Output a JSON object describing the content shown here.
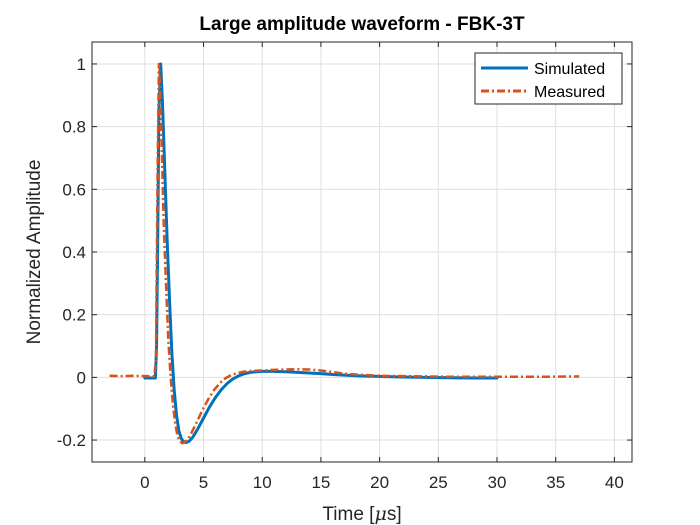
{
  "chart_data": {
    "type": "line",
    "title": "Large amplitude waveform - FBK-3T",
    "xlabel_main": "Time [",
    "xlabel_mu": "μ",
    "xlabel_tail": "s]",
    "ylabel": "Normalized Amplitude",
    "xlim": [
      -4.5,
      41.5
    ],
    "ylim": [
      -0.27,
      1.07
    ],
    "xticks": [
      0,
      5,
      10,
      15,
      20,
      25,
      30,
      35,
      40
    ],
    "yticks": [
      -0.2,
      0,
      0.2,
      0.4,
      0.6,
      0.8,
      1
    ],
    "xtick_labels": [
      "0",
      "5",
      "10",
      "15",
      "20",
      "25",
      "30",
      "35",
      "40"
    ],
    "ytick_labels": [
      "-0.2",
      "0",
      "0.2",
      "0.4",
      "0.6",
      "0.8",
      "1"
    ],
    "grid": true,
    "legend_position": "top-right",
    "series": [
      {
        "name": "Simulated",
        "color": "#0072BD",
        "style": "solid",
        "x": [
          0,
          0.9,
          1.0,
          1.1,
          1.2,
          1.35,
          1.5,
          1.7,
          1.9,
          2.1,
          2.3,
          2.5,
          2.7,
          2.9,
          3.1,
          3.3,
          3.5,
          3.8,
          4.1,
          4.5,
          5.0,
          5.5,
          6.0,
          6.5,
          7.0,
          7.5,
          8.0,
          8.5,
          9.0,
          9.5,
          10.0,
          11.0,
          12.0,
          13.0,
          14.0,
          15.0,
          16.0,
          17.0,
          18.0,
          19.0,
          20.0,
          22.0,
          24.0,
          26.0,
          28.0,
          30.0
        ],
        "y": [
          -0.002,
          -0.002,
          0.1,
          0.45,
          0.85,
          1.0,
          0.88,
          0.66,
          0.44,
          0.25,
          0.08,
          -0.04,
          -0.12,
          -0.17,
          -0.195,
          -0.205,
          -0.208,
          -0.203,
          -0.19,
          -0.165,
          -0.13,
          -0.095,
          -0.065,
          -0.04,
          -0.02,
          -0.005,
          0.005,
          0.012,
          0.016,
          0.018,
          0.019,
          0.019,
          0.018,
          0.016,
          0.014,
          0.012,
          0.009,
          0.007,
          0.005,
          0.004,
          0.003,
          0.001,
          0.0,
          -0.001,
          -0.002,
          -0.002
        ]
      },
      {
        "name": "Measured",
        "color": "#D95319",
        "style": "dash-dot",
        "x": [
          -3.0,
          -2.0,
          -1.0,
          0.0,
          0.8,
          0.95,
          1.0,
          1.1,
          1.2,
          1.3,
          1.45,
          1.6,
          1.8,
          2.0,
          2.2,
          2.4,
          2.6,
          2.8,
          3.0,
          3.2,
          3.4,
          3.7,
          4.0,
          4.4,
          4.9,
          5.4,
          5.9,
          6.4,
          6.9,
          7.4,
          7.9,
          8.4,
          8.9,
          9.4,
          10.0,
          11.0,
          12.0,
          13.0,
          14.0,
          15.0,
          16.0,
          17.0,
          18.0,
          19.0,
          20.0,
          22.0,
          24.0,
          26.0,
          28.0,
          30.0,
          32.0,
          34.0,
          37.0
        ],
        "y": [
          0.005,
          0.004,
          0.005,
          0.004,
          0.004,
          0.05,
          0.3,
          0.7,
          1.0,
          0.93,
          0.72,
          0.5,
          0.3,
          0.12,
          0.0,
          -0.09,
          -0.15,
          -0.19,
          -0.205,
          -0.21,
          -0.207,
          -0.195,
          -0.175,
          -0.145,
          -0.105,
          -0.07,
          -0.04,
          -0.018,
          -0.002,
          0.008,
          0.014,
          0.018,
          0.02,
          0.021,
          0.022,
          0.024,
          0.025,
          0.026,
          0.025,
          0.022,
          0.017,
          0.012,
          0.009,
          0.007,
          0.005,
          0.004,
          0.003,
          0.002,
          0.002,
          0.002,
          0.002,
          0.002,
          0.003
        ]
      }
    ]
  }
}
